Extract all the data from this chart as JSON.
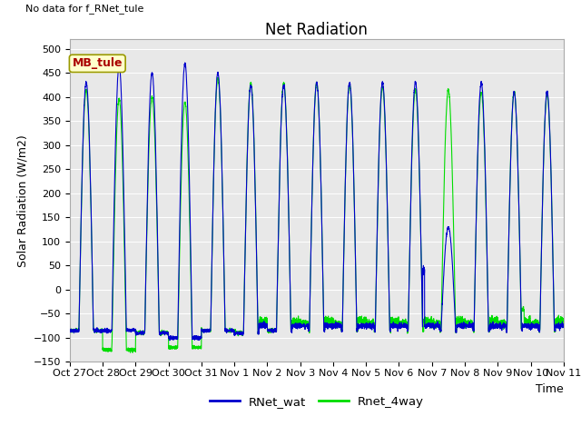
{
  "title": "Net Radiation",
  "xlabel": "Time",
  "ylabel": "Solar Radiation (W/m2)",
  "note": "No data for f_RNet_tule",
  "legend_label": "MB_tule",
  "ylim": [
    -150,
    520
  ],
  "yticks": [
    -150,
    -100,
    -50,
    0,
    50,
    100,
    150,
    200,
    250,
    300,
    350,
    400,
    450,
    500
  ],
  "xtick_labels": [
    "Oct 27",
    "Oct 28",
    "Oct 29",
    "Oct 30",
    "Oct 31",
    "Nov 1",
    "Nov 2",
    "Nov 3",
    "Nov 4",
    "Nov 5",
    "Nov 6",
    "Nov 7",
    "Nov 8",
    "Nov 9",
    "Nov 10",
    "Nov 11"
  ],
  "blue_color": "#0000cc",
  "green_color": "#00dd00",
  "bg_color": "#e8e8e8",
  "legend_box_facecolor": "#ffffcc",
  "legend_box_edgecolor": "#999900",
  "legend_text_color": "#aa0000",
  "title_fontsize": 12,
  "label_fontsize": 9,
  "tick_fontsize": 8,
  "note_fontsize": 8,
  "num_days": 15,
  "points_per_day": 288
}
